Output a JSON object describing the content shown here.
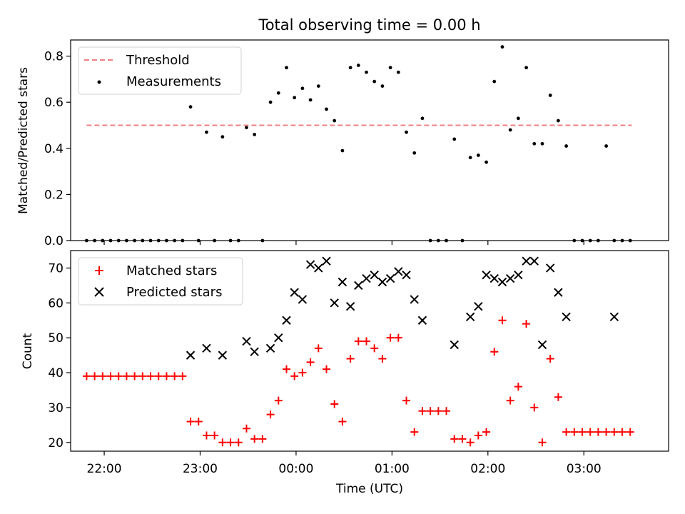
{
  "figure": {
    "title": "Total observing time = 0.00 h",
    "xlabel": "Time (UTC)"
  },
  "chart_data": [
    {
      "type": "scatter",
      "ylabel": "Matched/Predicted stars",
      "ylim": [
        0,
        0.87
      ],
      "yticks": [
        0.0,
        0.2,
        0.4,
        0.6,
        0.8
      ],
      "ytick_labels": [
        "0.0",
        "0.2",
        "0.4",
        "0.6",
        "0.8"
      ],
      "xlim": [
        "21:39",
        "03:53"
      ],
      "legend": {
        "position": "upper-left",
        "entries": [
          {
            "label": "Threshold",
            "style": "dashed-line",
            "color": "#f08080"
          },
          {
            "label": "Measurements",
            "style": "dot",
            "color": "#000000"
          }
        ]
      },
      "threshold": {
        "value": 0.5,
        "x_start": "21:49",
        "x_end": "03:30",
        "color": "#f08080"
      },
      "series": [
        {
          "name": "Measurements",
          "color": "#000000",
          "x": [
            "21:49",
            "21:54",
            "21:59",
            "22:04",
            "22:09",
            "22:14",
            "22:19",
            "22:24",
            "22:29",
            "22:34",
            "22:39",
            "22:44",
            "22:49",
            "22:54",
            "22:59",
            "23:04",
            "23:09",
            "23:14",
            "23:19",
            "23:24",
            "23:29",
            "23:34",
            "23:39",
            "23:44",
            "23:49",
            "23:54",
            "23:59",
            "00:04",
            "00:09",
            "00:14",
            "00:19",
            "00:24",
            "00:29",
            "00:34",
            "00:39",
            "00:44",
            "00:49",
            "00:54",
            "00:59",
            "01:04",
            "01:09",
            "01:14",
            "01:19",
            "01:24",
            "01:29",
            "01:34",
            "01:39",
            "01:44",
            "01:49",
            "01:54",
            "01:59",
            "02:04",
            "02:09",
            "02:14",
            "02:19",
            "02:24",
            "02:29",
            "02:34",
            "02:39",
            "02:44",
            "02:49",
            "02:54",
            "02:59",
            "03:04",
            "03:09",
            "03:14",
            "03:19",
            "03:24",
            "03:29"
          ],
          "values": [
            0.0,
            0.0,
            0.0,
            0.0,
            0.0,
            0.0,
            0.0,
            0.0,
            0.0,
            0.0,
            0.0,
            0.0,
            0.0,
            0.58,
            0.0,
            0.47,
            0.0,
            0.45,
            0.0,
            0.0,
            0.49,
            0.46,
            0.0,
            0.6,
            0.64,
            0.75,
            0.62,
            0.66,
            0.61,
            0.67,
            0.57,
            0.52,
            0.39,
            0.75,
            0.76,
            0.73,
            0.69,
            0.67,
            0.75,
            0.73,
            0.47,
            0.38,
            0.53,
            0.0,
            0.0,
            0.0,
            0.44,
            0.0,
            0.36,
            0.37,
            0.34,
            0.69,
            0.84,
            0.48,
            0.53,
            0.75,
            0.42,
            0.42,
            0.63,
            0.52,
            0.41,
            0.0,
            0.0,
            0.0,
            0.0,
            0.41,
            0.0,
            0.0,
            0.0
          ]
        }
      ]
    },
    {
      "type": "scatter",
      "ylabel": "Count",
      "ylim": [
        17.5,
        75
      ],
      "yticks": [
        20,
        30,
        40,
        50,
        60,
        70
      ],
      "ytick_labels": [
        "20",
        "30",
        "40",
        "50",
        "60",
        "70"
      ],
      "xlim": [
        "21:39",
        "03:53"
      ],
      "xticks": [
        "22:00",
        "23:00",
        "00:00",
        "01:00",
        "02:00",
        "03:00"
      ],
      "legend": {
        "position": "upper-left",
        "entries": [
          {
            "label": "Matched stars",
            "style": "plus",
            "color": "#ff0000"
          },
          {
            "label": "Predicted stars",
            "style": "x",
            "color": "#000000"
          }
        ]
      },
      "series": [
        {
          "name": "Matched stars",
          "marker": "plus",
          "color": "#ff0000",
          "x": [
            "21:49",
            "21:54",
            "21:59",
            "22:04",
            "22:09",
            "22:14",
            "22:19",
            "22:24",
            "22:29",
            "22:34",
            "22:39",
            "22:44",
            "22:49",
            "22:54",
            "22:59",
            "23:04",
            "23:09",
            "23:14",
            "23:19",
            "23:24",
            "23:29",
            "23:34",
            "23:39",
            "23:44",
            "23:49",
            "23:54",
            "23:59",
            "00:04",
            "00:09",
            "00:14",
            "00:19",
            "00:24",
            "00:29",
            "00:34",
            "00:39",
            "00:44",
            "00:49",
            "00:54",
            "00:59",
            "01:04",
            "01:09",
            "01:14",
            "01:19",
            "01:24",
            "01:29",
            "01:34",
            "01:39",
            "01:44",
            "01:49",
            "01:54",
            "01:59",
            "02:04",
            "02:09",
            "02:14",
            "02:19",
            "02:24",
            "02:29",
            "02:34",
            "02:39",
            "02:44",
            "02:49",
            "02:54",
            "02:59",
            "03:04",
            "03:09",
            "03:14",
            "03:19",
            "03:24",
            "03:29"
          ],
          "values": [
            39,
            39,
            39,
            39,
            39,
            39,
            39,
            39,
            39,
            39,
            39,
            39,
            39,
            26,
            26,
            22,
            22,
            20,
            20,
            20,
            24,
            21,
            21,
            28,
            32,
            41,
            39,
            40,
            43,
            47,
            41,
            31,
            26,
            44,
            49,
            49,
            47,
            44,
            50,
            50,
            32,
            23,
            29,
            29,
            29,
            29,
            21,
            21,
            20,
            22,
            23,
            46,
            55,
            32,
            36,
            54,
            30,
            20,
            44,
            33,
            23,
            23,
            23,
            23,
            23,
            23,
            23,
            23,
            23
          ]
        },
        {
          "name": "Predicted stars",
          "marker": "x",
          "color": "#000000",
          "x": [
            "22:54",
            "23:04",
            "23:14",
            "23:29",
            "23:34",
            "23:44",
            "23:49",
            "23:54",
            "23:59",
            "00:04",
            "00:09",
            "00:14",
            "00:19",
            "00:24",
            "00:29",
            "00:34",
            "00:39",
            "00:44",
            "00:49",
            "00:54",
            "00:59",
            "01:04",
            "01:09",
            "01:14",
            "01:19",
            "01:39",
            "01:49",
            "01:54",
            "01:59",
            "02:04",
            "02:09",
            "02:14",
            "02:19",
            "02:24",
            "02:29",
            "02:34",
            "02:39",
            "02:44",
            "02:49",
            "03:19"
          ],
          "values": [
            45,
            47,
            45,
            49,
            46,
            47,
            50,
            55,
            63,
            61,
            71,
            70,
            72,
            60,
            66,
            59,
            65,
            67,
            68,
            66,
            67,
            69,
            68,
            61,
            55,
            48,
            56,
            59,
            68,
            67,
            66,
            67,
            68,
            72,
            72,
            48,
            70,
            63,
            56,
            56
          ]
        }
      ]
    }
  ]
}
